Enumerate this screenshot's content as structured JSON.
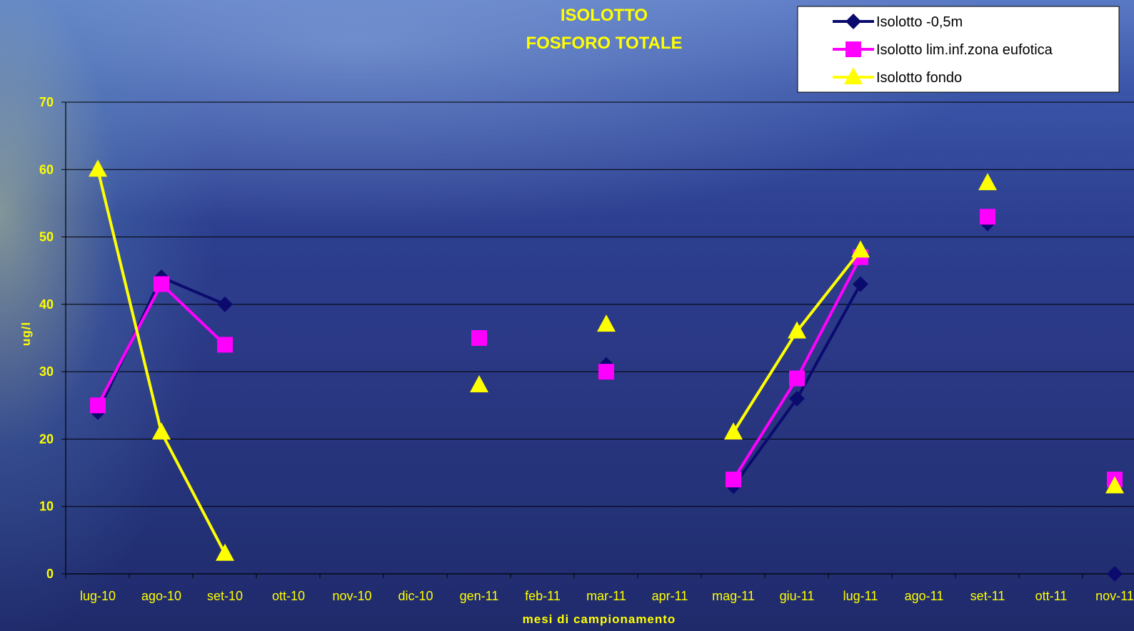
{
  "chart_data": {
    "type": "line",
    "title_line1": "ISOLOTTO",
    "title_line2": "FOSFORO TOTALE",
    "xlabel": "mesi di campionamento",
    "ylabel": "ug/l",
    "ylim": [
      0,
      70
    ],
    "yticks": [
      "0",
      "10",
      "20",
      "30",
      "40",
      "50",
      "60",
      "70"
    ],
    "grid": "horizontal",
    "legend_position": "top-right",
    "categories": [
      "lug-10",
      "ago-10",
      "set-10",
      "ott-10",
      "nov-10",
      "dic-10",
      "gen-11",
      "feb-11",
      "mar-11",
      "apr-11",
      "mag-11",
      "giu-11",
      "lug-11",
      "ago-11",
      "set-11",
      "ott-11",
      "nov-11"
    ],
    "series": [
      {
        "name": "Isolotto -0,5m",
        "color": "#0b0b6e",
        "marker": "diamond",
        "values": [
          24,
          44,
          40,
          null,
          null,
          null,
          35,
          null,
          31,
          null,
          13,
          26,
          43,
          null,
          52,
          null,
          0
        ]
      },
      {
        "name": "Isolotto lim.inf.zona eufotica",
        "color": "#ff00ff",
        "marker": "square",
        "values": [
          25,
          43,
          34,
          null,
          null,
          null,
          35,
          null,
          30,
          null,
          14,
          29,
          47,
          null,
          53,
          null,
          14
        ]
      },
      {
        "name": "Isolotto fondo",
        "color": "#ffff00",
        "marker": "triangle",
        "values": [
          60,
          21,
          3,
          null,
          null,
          null,
          28,
          null,
          37,
          null,
          21,
          36,
          48,
          null,
          58,
          null,
          13
        ]
      }
    ]
  }
}
